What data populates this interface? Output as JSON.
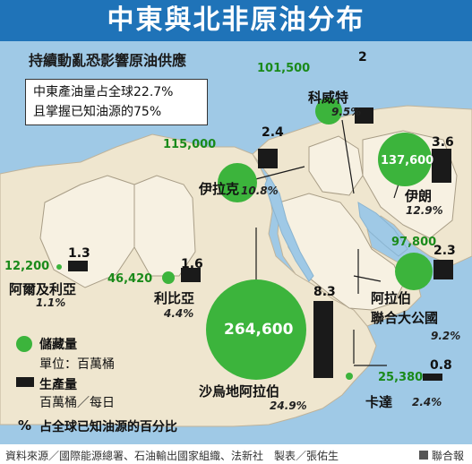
{
  "title": "中東與北非原油分布",
  "subtitle": "持續動亂恐影響原油供應",
  "note": [
    "中東產油量占全球22.7%",
    "且掌握已知油源的75%"
  ],
  "colors": {
    "title_bg": "#1f73b8",
    "sea": "#9fc9e6",
    "land": "#efe6cf",
    "reserve": "#3cb43c",
    "production": "#1a1a1a"
  },
  "countries": [
    {
      "name": "科威特",
      "pct": "9.5%",
      "reserve": "101,500",
      "production": "2"
    },
    {
      "name": "伊拉克",
      "pct": "10.8%",
      "reserve": "115,000",
      "production": "2.4"
    },
    {
      "name": "伊朗",
      "pct": "12.9%",
      "reserve": "137,600",
      "production": "3.6"
    },
    {
      "name": "阿爾及利亞",
      "pct": "1.1%",
      "reserve": "12,200",
      "production": "1.3"
    },
    {
      "name": "利比亞",
      "pct": "4.4%",
      "reserve": "46,420",
      "production": "1.6"
    },
    {
      "name": "阿拉伯",
      "name2": "聯合大公國",
      "pct": "9.2%",
      "reserve": "97,800",
      "production": "2.3"
    },
    {
      "name": "沙烏地阿拉伯",
      "pct": "24.9%",
      "reserve": "264,600",
      "production": "8.3"
    },
    {
      "name": "卡達",
      "pct": "2.4%",
      "reserve": "25,380",
      "production": "0.8"
    }
  ],
  "legend": {
    "reserve_label": "儲藏量",
    "reserve_unit": "單位：百萬桶",
    "production_label": "生產量",
    "production_unit": "百萬桶／每日",
    "pct_symbol": "%",
    "pct_label": "占全球已知油源的百分比"
  },
  "footer": {
    "source": "資料來源／國際能源總署、石油輸出國家組織、法新社　製表／張佑生",
    "brand": "聯合報"
  }
}
